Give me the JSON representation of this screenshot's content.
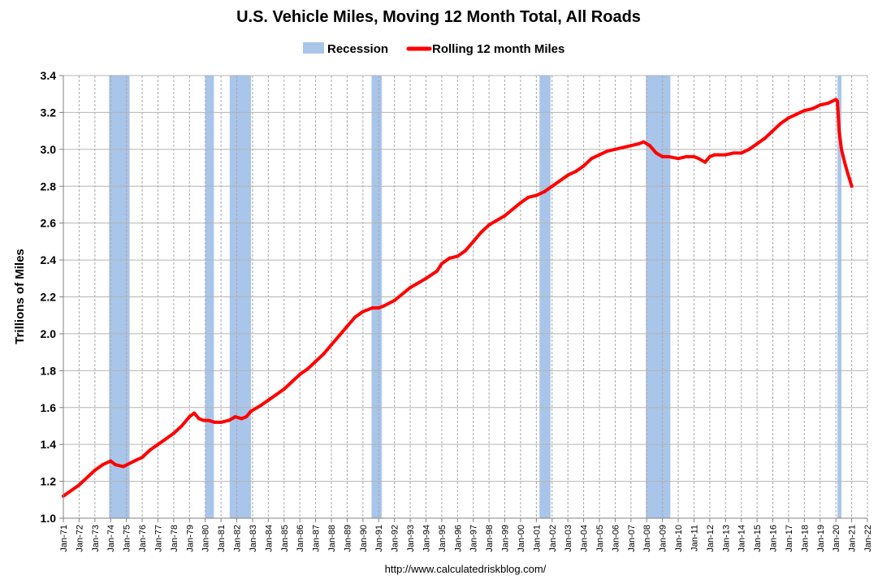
{
  "chart_data": {
    "type": "line",
    "title": "U.S. Vehicle Miles, Moving 12 Month Total, All Roads",
    "ylabel": "Trillions of Miles",
    "xlabel": "",
    "source": "http://www.calculatedriskblog.com/",
    "ylim": [
      1.0,
      3.4
    ],
    "yticks": [
      "1.0",
      "1.2",
      "1.4",
      "1.6",
      "1.8",
      "2.0",
      "2.2",
      "2.4",
      "2.6",
      "2.8",
      "3.0",
      "3.2",
      "3.4"
    ],
    "xlim": [
      1971.0,
      2022.0
    ],
    "xticks": [
      "Jan-71",
      "Jan-72",
      "Jan-73",
      "Jan-74",
      "Jan-75",
      "Jan-76",
      "Jan-77",
      "Jan-78",
      "Jan-79",
      "Jan-80",
      "Jan-81",
      "Jan-82",
      "Jan-83",
      "Jan-84",
      "Jan-85",
      "Jan-86",
      "Jan-87",
      "Jan-88",
      "Jan-89",
      "Jan-90",
      "Jan-91",
      "Jan-92",
      "Jan-93",
      "Jan-94",
      "Jan-95",
      "Jan-96",
      "Jan-97",
      "Jan-98",
      "Jan-99",
      "Jan-00",
      "Jan-01",
      "Jan-02",
      "Jan-03",
      "Jan-04",
      "Jan-05",
      "Jan-06",
      "Jan-07",
      "Jan-08",
      "Jan-09",
      "Jan-10",
      "Jan-11",
      "Jan-12",
      "Jan-13",
      "Jan-14",
      "Jan-15",
      "Jan-16",
      "Jan-17",
      "Jan-18",
      "Jan-19",
      "Jan-20",
      "Jan-21",
      "Jan-22"
    ],
    "grid": true,
    "legend": {
      "placement": "top-center",
      "recession_label": "Recession",
      "line_label": "Rolling 12 month Miles"
    },
    "colors": {
      "recession": "#a9c5ea",
      "line": "#ff0000"
    },
    "recessions": [
      {
        "start": 1973.9,
        "end": 1975.2
      },
      {
        "start": 1980.0,
        "end": 1980.55
      },
      {
        "start": 1981.55,
        "end": 1982.9
      },
      {
        "start": 1990.55,
        "end": 1991.2
      },
      {
        "start": 2001.2,
        "end": 2001.9
      },
      {
        "start": 2007.95,
        "end": 2009.5
      },
      {
        "start": 2020.1,
        "end": 2020.35
      }
    ],
    "series": [
      {
        "name": "Rolling 12 month Miles",
        "x": [
          1971.0,
          1972.0,
          1973.0,
          1973.5,
          1974.0,
          1974.3,
          1974.8,
          1975.5,
          1976.0,
          1976.5,
          1977.0,
          1977.5,
          1978.0,
          1978.5,
          1979.0,
          1979.3,
          1979.6,
          1979.9,
          1980.2,
          1980.6,
          1981.0,
          1981.5,
          1981.9,
          1982.3,
          1982.6,
          1982.9,
          1983.5,
          1984.0,
          1984.5,
          1985.0,
          1985.5,
          1986.0,
          1986.5,
          1987.0,
          1987.5,
          1988.0,
          1988.5,
          1989.0,
          1989.5,
          1990.0,
          1990.6,
          1991.0,
          1991.3,
          1992.0,
          1993.0,
          1994.0,
          1994.7,
          1995.0,
          1995.5,
          1996.0,
          1996.5,
          1997.0,
          1997.5,
          1998.0,
          1999.0,
          2000.0,
          2000.5,
          2001.0,
          2001.5,
          2002.0,
          2003.0,
          2003.5,
          2004.0,
          2004.5,
          2005.0,
          2005.5,
          2006.0,
          2006.5,
          2007.0,
          2007.5,
          2007.8,
          2008.2,
          2008.6,
          2009.0,
          2009.4,
          2010.0,
          2010.5,
          2011.0,
          2011.3,
          2011.7,
          2012.0,
          2012.3,
          2012.5,
          2013.0,
          2013.5,
          2014.0,
          2014.5,
          2015.0,
          2015.5,
          2016.0,
          2016.5,
          2017.0,
          2017.5,
          2018.0,
          2018.5,
          2019.0,
          2019.5,
          2020.0,
          2020.1,
          2020.2,
          2020.35,
          2020.55,
          2020.75,
          2020.9,
          2021.0
        ],
        "values": [
          1.12,
          1.18,
          1.26,
          1.29,
          1.31,
          1.29,
          1.28,
          1.31,
          1.33,
          1.37,
          1.4,
          1.43,
          1.46,
          1.5,
          1.55,
          1.57,
          1.54,
          1.53,
          1.53,
          1.52,
          1.52,
          1.53,
          1.55,
          1.54,
          1.55,
          1.58,
          1.61,
          1.64,
          1.67,
          1.7,
          1.74,
          1.78,
          1.81,
          1.85,
          1.89,
          1.94,
          1.99,
          2.04,
          2.09,
          2.12,
          2.14,
          2.14,
          2.15,
          2.18,
          2.25,
          2.3,
          2.34,
          2.38,
          2.41,
          2.42,
          2.45,
          2.5,
          2.55,
          2.59,
          2.64,
          2.71,
          2.74,
          2.75,
          2.77,
          2.8,
          2.86,
          2.88,
          2.91,
          2.95,
          2.97,
          2.99,
          3.0,
          3.01,
          3.02,
          3.03,
          3.04,
          3.02,
          2.98,
          2.96,
          2.96,
          2.95,
          2.96,
          2.96,
          2.95,
          2.93,
          2.96,
          2.97,
          2.97,
          2.97,
          2.98,
          2.98,
          3.0,
          3.03,
          3.06,
          3.1,
          3.14,
          3.17,
          3.19,
          3.21,
          3.22,
          3.24,
          3.25,
          3.27,
          3.26,
          3.1,
          3.0,
          2.93,
          2.87,
          2.83,
          2.8
        ]
      }
    ]
  }
}
